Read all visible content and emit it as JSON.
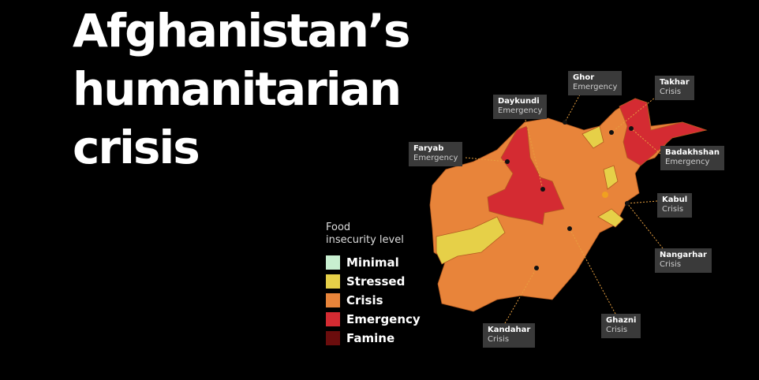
{
  "title": {
    "lines": [
      "Afghanistan’s",
      "humanitarian",
      "crisis"
    ]
  },
  "legend": {
    "title_lines": [
      "Food",
      "insecurity level"
    ],
    "items": [
      {
        "label": "Minimal",
        "color": "#c8efd0"
      },
      {
        "label": "Stressed",
        "color": "#e6d048"
      },
      {
        "label": "Crisis",
        "color": "#e8843a"
      },
      {
        "label": "Emergency",
        "color": "#d42b32"
      },
      {
        "label": "Famine",
        "color": "#6b0d0d"
      }
    ]
  },
  "callouts": [
    {
      "name": "Faryab",
      "level": "Emergency"
    },
    {
      "name": "Daykundi",
      "level": "Emergency"
    },
    {
      "name": "Ghor",
      "level": "Emergency"
    },
    {
      "name": "Takhar",
      "level": "Crisis"
    },
    {
      "name": "Badakhshan",
      "level": "Emergency"
    },
    {
      "name": "Kabul",
      "level": "Crisis"
    },
    {
      "name": "Nangarhar",
      "level": "Crisis"
    },
    {
      "name": "Ghazni",
      "level": "Crisis"
    },
    {
      "name": "Kandahar",
      "level": "Crisis"
    }
  ]
}
